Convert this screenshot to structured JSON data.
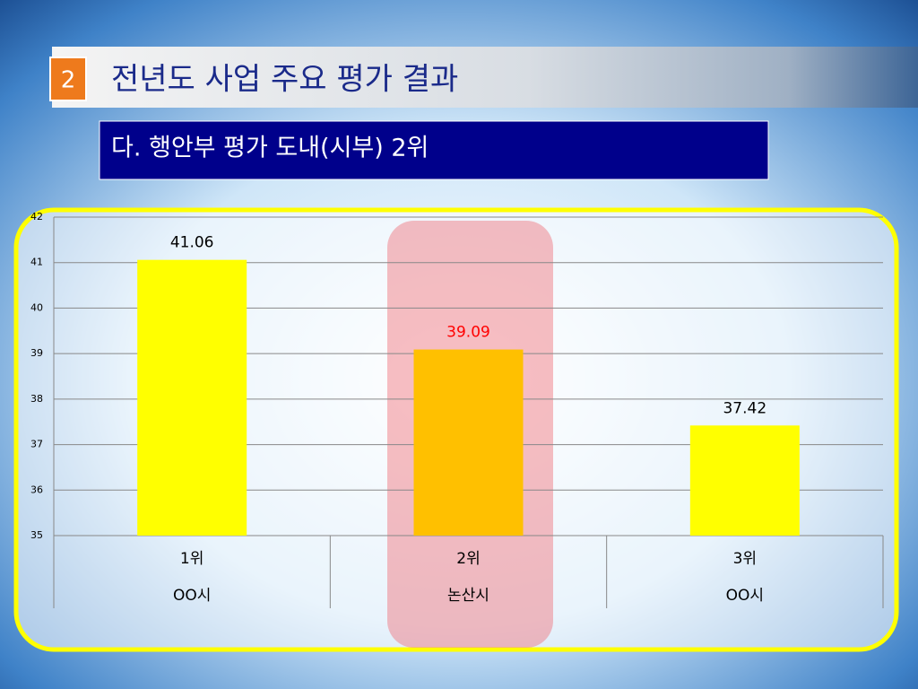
{
  "chart_data": {
    "type": "bar",
    "section_number": "2",
    "title": "전년도 사업 주요 평가 결과",
    "subtitle": "다. 행안부 평가 도내(시부) 2위",
    "categories": [
      "1위",
      "2위",
      "3위"
    ],
    "category_names": [
      "OO시",
      "논산시",
      "OO시"
    ],
    "values": [
      41.06,
      39.09,
      37.42
    ],
    "colors": [
      "#ffff00",
      "#ffc000",
      "#ffff00"
    ],
    "value_label_colors": [
      "#000000",
      "#ff0000",
      "#000000"
    ],
    "ylim": [
      35,
      42
    ],
    "yticks": [
      35,
      36,
      37,
      38,
      39,
      40,
      41,
      42
    ],
    "grid": true
  }
}
